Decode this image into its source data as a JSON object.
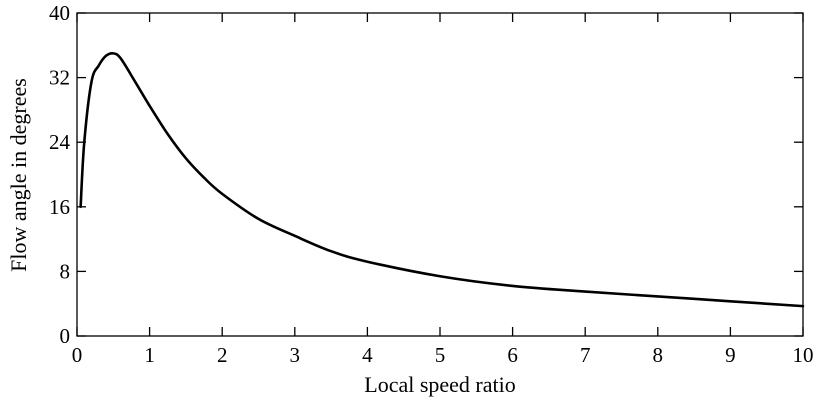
{
  "chart_data": {
    "type": "line",
    "xlabel": "Local speed ratio",
    "ylabel": "Flow angle in degrees",
    "xlim": [
      0,
      10
    ],
    "ylim": [
      0,
      40
    ],
    "xticks": [
      "0",
      "1",
      "2",
      "3",
      "4",
      "5",
      "6",
      "7",
      "8",
      "9",
      "10"
    ],
    "yticks": [
      "0",
      "8",
      "16",
      "24",
      "32",
      "40"
    ],
    "grid": false,
    "line_color": "#000000",
    "series": [
      {
        "x": [
          0.05,
          0.1,
          0.2,
          0.3,
          0.4,
          0.5,
          0.6,
          0.8,
          1.0,
          1.25,
          1.5,
          1.75,
          2.0,
          2.5,
          3.0,
          3.5,
          4.0,
          5.0,
          6.0,
          7.0,
          8.0,
          9.0,
          10.0
        ],
        "values": [
          16.0,
          24.0,
          31.5,
          33.5,
          34.7,
          35.0,
          34.4,
          31.5,
          28.5,
          25.0,
          22.0,
          19.6,
          17.6,
          14.5,
          12.4,
          10.5,
          9.2,
          7.4,
          6.2,
          5.5,
          4.9,
          4.3,
          3.7
        ]
      }
    ]
  }
}
